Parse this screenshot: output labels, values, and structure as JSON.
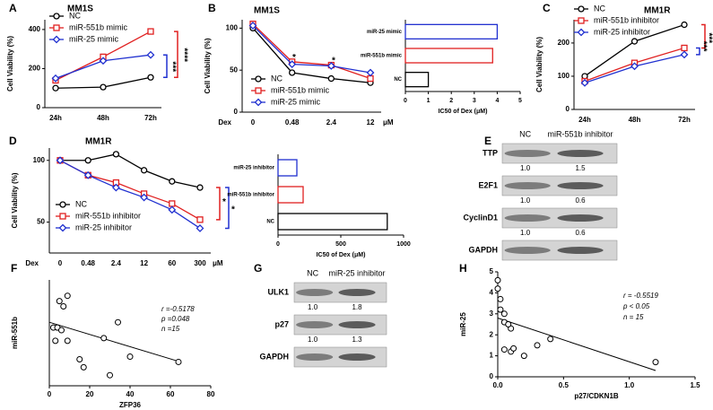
{
  "chart_data": [
    {
      "type": "line",
      "panel": "A",
      "title": "MM1S",
      "ylabel": "Cell Viability (%)",
      "categories": [
        "24h",
        "48h",
        "72h"
      ],
      "ylim": [
        0,
        450
      ],
      "yticks": [
        0,
        200,
        400
      ],
      "series": [
        {
          "name": "NC",
          "color": "#000000",
          "marker": "circle",
          "values": [
            100,
            105,
            155
          ]
        },
        {
          "name": "miR-551b mimic",
          "color": "#e02020",
          "marker": "square",
          "values": [
            140,
            260,
            390
          ]
        },
        {
          "name": "miR-25 mimic",
          "color": "#2030d0",
          "marker": "diamond",
          "values": [
            150,
            240,
            270
          ]
        }
      ],
      "annotations": [
        "****",
        "***"
      ]
    },
    {
      "type": "line",
      "panel": "B",
      "title": "MM1S",
      "ylabel": "Cell Viability (%)",
      "x_prefix": "Dex",
      "x_unit": "μM",
      "categories": [
        "0",
        "0.48",
        "2.4",
        "12"
      ],
      "ylim": [
        0,
        110
      ],
      "yticks": [
        0,
        50,
        100
      ],
      "series": [
        {
          "name": "NC",
          "color": "#000000",
          "marker": "circle",
          "values": [
            100,
            47,
            40,
            35
          ]
        },
        {
          "name": "miR-551b mimic",
          "color": "#e02020",
          "marker": "square",
          "values": [
            105,
            60,
            56,
            40
          ]
        },
        {
          "name": "miR-25 mimic",
          "color": "#2030d0",
          "marker": "diamond",
          "values": [
            103,
            57,
            55,
            47
          ]
        }
      ],
      "annotations": [
        "*",
        "*"
      ]
    },
    {
      "type": "hbar",
      "xlabel": "IC50 of Dex (μM)",
      "categories": [
        "miR-25 mimic",
        "miR-551b mimic",
        "NC"
      ],
      "colors": [
        "#2030d0",
        "#e02020",
        "#000000"
      ],
      "values": [
        4.0,
        3.8,
        1.0
      ],
      "xlim": [
        0,
        5
      ],
      "xticks": [
        0,
        1,
        2,
        3,
        4,
        5
      ]
    },
    {
      "type": "line",
      "panel": "C",
      "title": "MM1R",
      "ylabel": "Cell Viability (%)",
      "categories": [
        "24h",
        "48h",
        "72h"
      ],
      "ylim": [
        0,
        270
      ],
      "yticks": [
        0,
        100,
        200
      ],
      "series": [
        {
          "name": "NC",
          "color": "#000000",
          "marker": "circle",
          "values": [
            100,
            205,
            255
          ]
        },
        {
          "name": "miR-551b inhibitor",
          "color": "#e02020",
          "marker": "square",
          "values": [
            85,
            140,
            185
          ]
        },
        {
          "name": "miR-25 inhibitor",
          "color": "#2030d0",
          "marker": "diamond",
          "values": [
            80,
            130,
            165
          ]
        }
      ],
      "annotations": [
        "***",
        "***"
      ]
    },
    {
      "type": "line",
      "panel": "D",
      "title": "MM1R",
      "ylabel": "Cell Viability (%)",
      "x_prefix": "Dex",
      "x_unit": "μM",
      "categories": [
        "0",
        "0.48",
        "2.4",
        "12",
        "60",
        "300"
      ],
      "ylim": [
        25,
        110
      ],
      "yticks": [
        50,
        100
      ],
      "series": [
        {
          "name": "NC",
          "color": "#000000",
          "marker": "circle",
          "values": [
            100,
            100,
            105,
            92,
            83,
            78
          ]
        },
        {
          "name": "miR-551b inhibitor",
          "color": "#e02020",
          "marker": "square",
          "values": [
            100,
            88,
            82,
            73,
            65,
            52
          ]
        },
        {
          "name": "miR-25 inhibitor",
          "color": "#2030d0",
          "marker": "diamond",
          "values": [
            100,
            88,
            78,
            70,
            60,
            45
          ]
        }
      ],
      "annotations": [
        "*",
        "*"
      ]
    },
    {
      "type": "hbar",
      "xlabel": "IC50 of Dex (μM)",
      "categories": [
        "miR-25 inhibitor",
        "miR-551b inhibitor",
        "NC"
      ],
      "colors": [
        "#2030d0",
        "#e02020",
        "#000000"
      ],
      "values": [
        150,
        200,
        870
      ],
      "xlim": [
        0,
        1000
      ],
      "xticks": [
        0,
        500,
        1000
      ]
    },
    {
      "type": "scatter",
      "panel": "F",
      "xlabel": "ZFP36",
      "ylabel": "miR-551b",
      "xlim": [
        0,
        80
      ],
      "xticks": [
        0,
        20,
        40,
        60,
        80
      ],
      "ylim": [
        0,
        0.2
      ],
      "x": [
        2,
        3,
        4,
        5,
        6,
        7,
        9,
        9,
        15,
        17,
        27,
        30,
        34,
        40,
        64
      ],
      "y": [
        0.11,
        0.085,
        0.11,
        0.16,
        0.105,
        0.15,
        0.17,
        0.085,
        0.05,
        0.035,
        0.09,
        0.02,
        0.12,
        0.055,
        0.045
      ],
      "trendline": {
        "x": [
          0,
          65
        ],
        "y": [
          0.12,
          0.045
        ]
      },
      "annotations": [
        "r =-0.5178",
        "p =0.048",
        "n =15"
      ]
    },
    {
      "type": "scatter",
      "panel": "H",
      "xlabel": "p27/CDKN1B",
      "ylabel": "miR-25",
      "xlim": [
        0,
        1.5
      ],
      "xticks": [
        {
          "value": 0,
          "label": "0.0"
        },
        0.5,
        {
          "value": 1,
          "label": "1.0"
        },
        1.5
      ],
      "ylim": [
        0,
        5
      ],
      "yticks": [
        0,
        1,
        2,
        3,
        4,
        5
      ],
      "x": [
        0,
        0,
        0.02,
        0.02,
        0.05,
        0.05,
        0.1,
        0.05,
        0.1,
        0.12,
        0.3,
        0.4,
        0.2,
        1.2,
        0.08
      ],
      "y": [
        4.6,
        4.2,
        3.7,
        3.2,
        3.0,
        2.6,
        2.3,
        1.3,
        1.2,
        1.35,
        1.5,
        1.8,
        1.0,
        0.7,
        2.5
      ],
      "trendline": {
        "x": [
          0,
          1.2
        ],
        "y": [
          2.8,
          0.3
        ]
      },
      "annotations": [
        "r = -0.5519",
        "p < 0.05",
        "n = 15"
      ]
    }
  ],
  "blots": [
    {
      "panel": "E",
      "columns": [
        "NC",
        "miR-551b inhibitor"
      ],
      "rows": [
        {
          "name": "TTP",
          "values": [
            "1.0",
            "1.5"
          ]
        },
        {
          "name": "E2F1",
          "values": [
            "1.0",
            "0.6"
          ]
        },
        {
          "name": "CyclinD1",
          "values": [
            "1.0",
            "0.6"
          ]
        },
        {
          "name": "GAPDH",
          "values": []
        }
      ]
    },
    {
      "panel": "G",
      "columns": [
        "NC",
        "miR-25 inhibitor"
      ],
      "rows": [
        {
          "name": "ULK1",
          "values": [
            "1.0",
            "1.8"
          ]
        },
        {
          "name": "p27",
          "values": [
            "1.0",
            "1.3"
          ]
        },
        {
          "name": "GAPDH",
          "values": []
        }
      ]
    }
  ]
}
